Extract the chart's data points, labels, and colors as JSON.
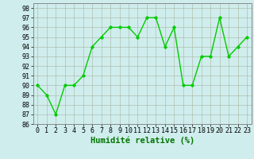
{
  "x": [
    0,
    1,
    2,
    3,
    4,
    5,
    6,
    7,
    8,
    9,
    10,
    11,
    12,
    13,
    14,
    15,
    16,
    17,
    18,
    19,
    20,
    21,
    22,
    23
  ],
  "y": [
    90,
    89,
    87,
    90,
    90,
    91,
    94,
    95,
    96,
    96,
    96,
    95,
    97,
    97,
    94,
    96,
    90,
    90,
    93,
    93,
    97,
    93,
    94,
    95
  ],
  "line_color": "#00cc00",
  "marker": "D",
  "marker_size": 1.8,
  "linewidth": 1.0,
  "xlabel": "Humidité relative (%)",
  "xlabel_fontsize": 7.5,
  "xlabel_color": "#007700",
  "ylim": [
    86,
    98.5
  ],
  "yticks": [
    86,
    87,
    88,
    89,
    90,
    91,
    92,
    93,
    94,
    95,
    96,
    97,
    98
  ],
  "xlim": [
    -0.5,
    23.5
  ],
  "xticks": [
    0,
    1,
    2,
    3,
    4,
    5,
    6,
    7,
    8,
    9,
    10,
    11,
    12,
    13,
    14,
    15,
    16,
    17,
    18,
    19,
    20,
    21,
    22,
    23
  ],
  "xtick_labels": [
    "0",
    "1",
    "2",
    "3",
    "4",
    "5",
    "6",
    "7",
    "8",
    "9",
    "10",
    "11",
    "12",
    "13",
    "14",
    "15",
    "16",
    "17",
    "18",
    "19",
    "20",
    "21",
    "22",
    "23"
  ],
  "grid_color": "#aabbaa",
  "bg_color": "#d0eded",
  "tick_fontsize": 6.0,
  "ytick_fontsize": 6.0
}
